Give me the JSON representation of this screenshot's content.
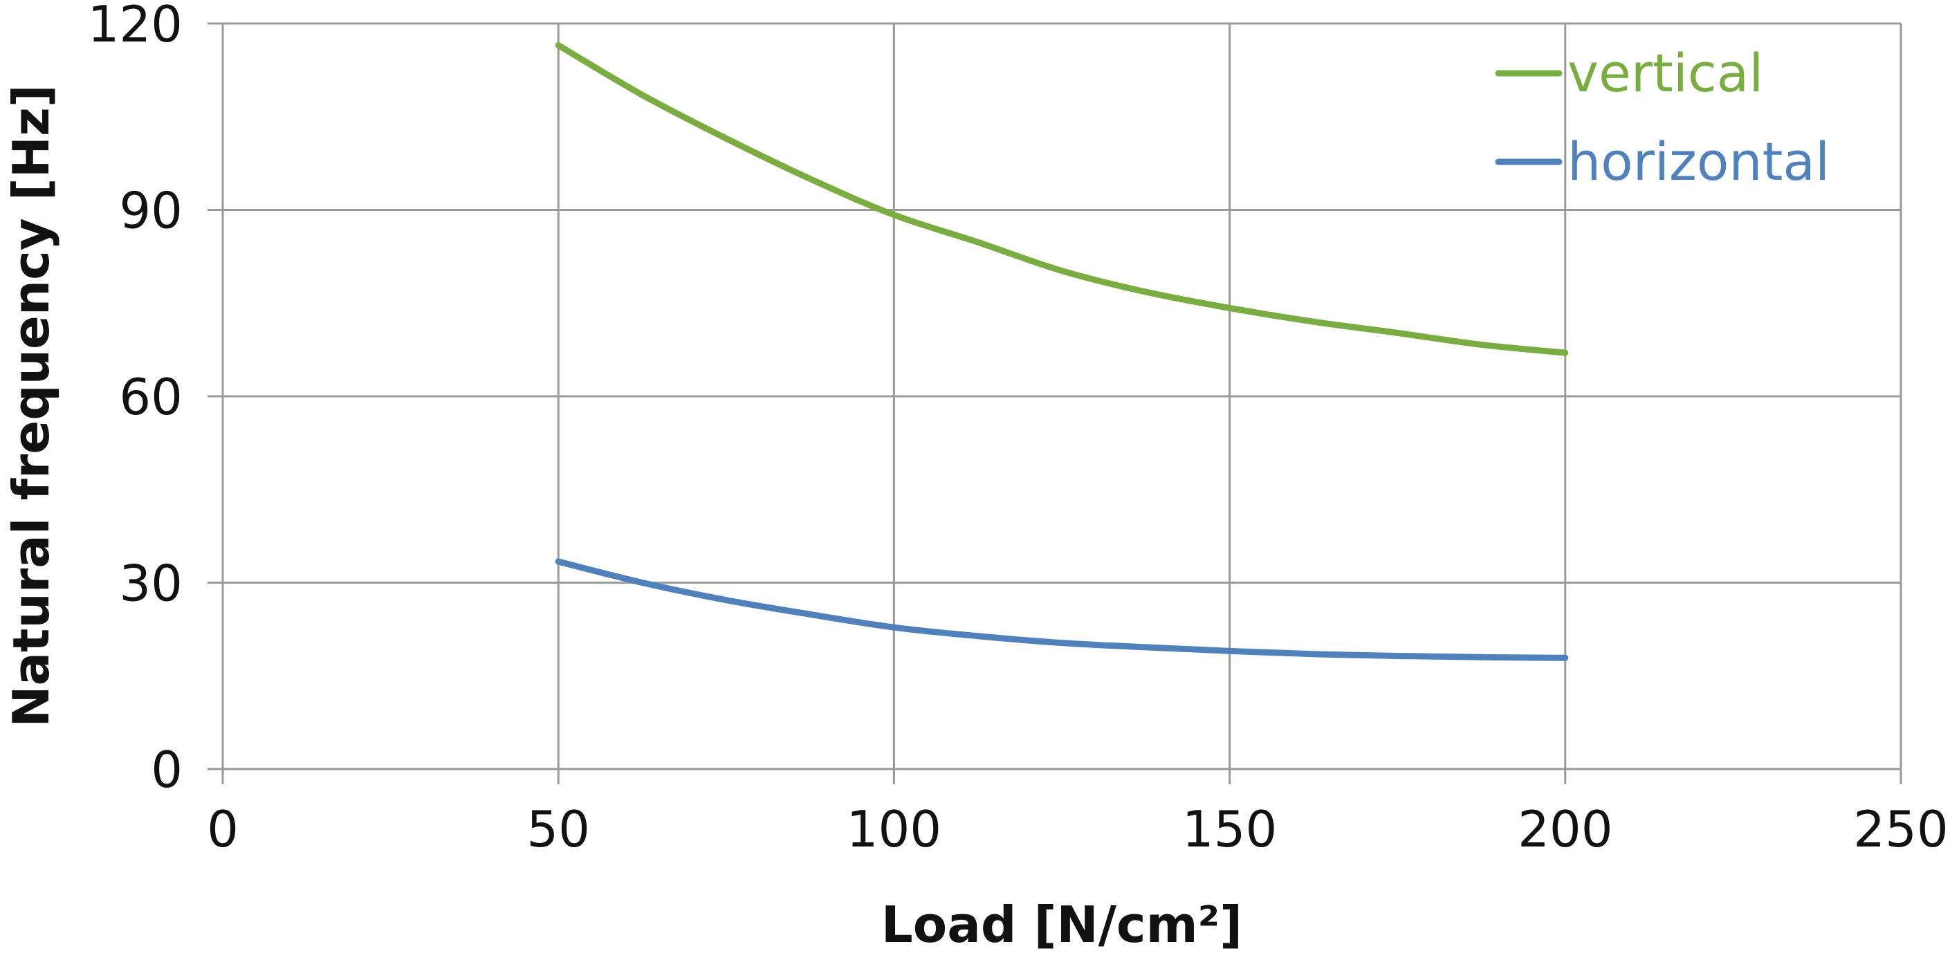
{
  "chart_data": {
    "type": "line",
    "xlabel": "Load [N/cm²]",
    "ylabel": "Natural frequency [Hz]",
    "xlim": [
      0,
      250
    ],
    "ylim": [
      0,
      120
    ],
    "xticks": [
      0,
      50,
      100,
      150,
      200,
      250
    ],
    "yticks": [
      0,
      30,
      60,
      90,
      120
    ],
    "xtick_labels": [
      "0",
      "50",
      "100",
      "150",
      "200",
      "250"
    ],
    "ytick_labels": [
      "0",
      "30",
      "60",
      "90",
      "120"
    ],
    "grid": true,
    "legend_position": "top-right",
    "series": [
      {
        "name": "vertical",
        "color": "#7aad3f",
        "x": [
          50,
          62.5,
          75,
          87.5,
          100,
          112.5,
          125,
          137.5,
          150,
          162.5,
          175,
          187.5,
          200
        ],
        "y": [
          116.5,
          108.5,
          101.5,
          95,
          89.2,
          84.8,
          80.2,
          76.8,
          74.2,
          72,
          70.2,
          68.3,
          67
        ]
      },
      {
        "name": "horizontal",
        "color": "#4f81bd",
        "x": [
          50,
          62.5,
          75,
          87.5,
          100,
          112.5,
          125,
          137.5,
          150,
          162.5,
          175,
          187.5,
          200
        ],
        "y": [
          33.4,
          30,
          27.2,
          24.9,
          22.8,
          21.4,
          20.3,
          19.6,
          19,
          18.5,
          18.2,
          18,
          17.9
        ]
      }
    ]
  }
}
